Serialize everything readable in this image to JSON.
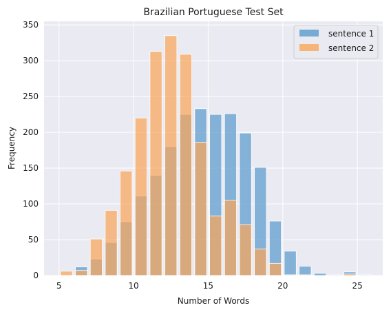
{
  "chart_data": {
    "type": "bar",
    "title": "Brazilian Portuguese Test Set",
    "xlabel": "Number of Words",
    "ylabel": "Frequency",
    "xlim": [
      4.0,
      26.7
    ],
    "ylim": [
      0,
      355
    ],
    "xticks": [
      5,
      10,
      15,
      20,
      25
    ],
    "yticks": [
      0,
      50,
      100,
      150,
      200,
      250,
      300,
      350
    ],
    "grid": true,
    "legend_position": "top-right",
    "bar_width": 0.8,
    "series": [
      {
        "name": "sentence 1",
        "color": "#5b9bcc",
        "points": [
          {
            "x": 6.5,
            "y": 12
          },
          {
            "x": 7.5,
            "y": 23
          },
          {
            "x": 8.5,
            "y": 46
          },
          {
            "x": 9.5,
            "y": 75
          },
          {
            "x": 10.5,
            "y": 111
          },
          {
            "x": 11.5,
            "y": 140
          },
          {
            "x": 12.5,
            "y": 180
          },
          {
            "x": 13.5,
            "y": 225
          },
          {
            "x": 14.5,
            "y": 233
          },
          {
            "x": 15.5,
            "y": 225
          },
          {
            "x": 16.5,
            "y": 226
          },
          {
            "x": 17.5,
            "y": 199
          },
          {
            "x": 18.5,
            "y": 151
          },
          {
            "x": 19.5,
            "y": 76
          },
          {
            "x": 20.5,
            "y": 34
          },
          {
            "x": 21.5,
            "y": 13
          },
          {
            "x": 22.5,
            "y": 3
          },
          {
            "x": 23.5,
            "y": 1
          },
          {
            "x": 24.5,
            "y": 5
          },
          {
            "x": 25.5,
            "y": 1
          }
        ]
      },
      {
        "name": "sentence 2",
        "color": "#f9a65a",
        "points": [
          {
            "x": 5.5,
            "y": 6
          },
          {
            "x": 6.5,
            "y": 7
          },
          {
            "x": 7.5,
            "y": 51
          },
          {
            "x": 8.5,
            "y": 91
          },
          {
            "x": 9.5,
            "y": 146
          },
          {
            "x": 10.5,
            "y": 220
          },
          {
            "x": 11.5,
            "y": 313
          },
          {
            "x": 12.5,
            "y": 335
          },
          {
            "x": 13.5,
            "y": 309
          },
          {
            "x": 14.5,
            "y": 186
          },
          {
            "x": 15.5,
            "y": 83
          },
          {
            "x": 16.5,
            "y": 105
          },
          {
            "x": 17.5,
            "y": 71
          },
          {
            "x": 18.5,
            "y": 37
          },
          {
            "x": 19.5,
            "y": 17
          },
          {
            "x": 20.5,
            "y": 1
          },
          {
            "x": 21.5,
            "y": 1
          },
          {
            "x": 24.5,
            "y": 2
          }
        ]
      }
    ]
  }
}
